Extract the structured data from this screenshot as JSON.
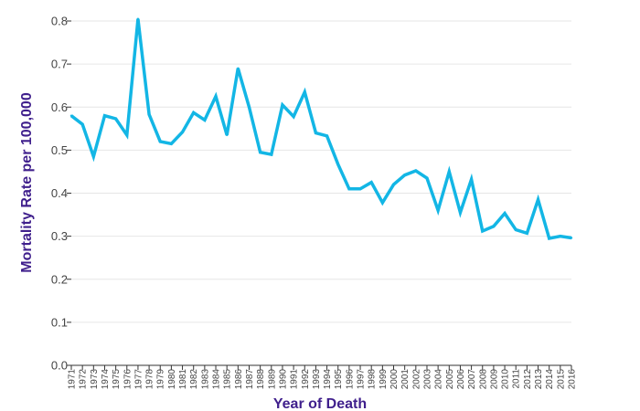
{
  "chart_data": {
    "type": "line",
    "title": "",
    "xlabel": "Year of Death",
    "ylabel": "Mortality Rate per 100,000",
    "ylim": [
      0,
      0.8
    ],
    "yticks": [
      "0.0",
      "0.1",
      "0.2",
      "0.3",
      "0.4",
      "0.5",
      "0.6",
      "0.7",
      "0.8"
    ],
    "grid": true,
    "legend": "none",
    "x": [
      1971,
      1972,
      1973,
      1974,
      1975,
      1976,
      1977,
      1978,
      1979,
      1980,
      1981,
      1982,
      1983,
      1984,
      1985,
      1986,
      1987,
      1988,
      1989,
      1990,
      1991,
      1992,
      1993,
      1994,
      1995,
      1996,
      1997,
      1998,
      1999,
      2000,
      2001,
      2002,
      2003,
      2004,
      2005,
      2006,
      2007,
      2008,
      2009,
      2010,
      2011,
      2012,
      2013,
      2014,
      2015,
      2016
    ],
    "series": [
      {
        "values": [
          0.58,
          0.56,
          0.485,
          0.58,
          0.573,
          0.535,
          0.805,
          0.583,
          0.52,
          0.515,
          0.542,
          0.587,
          0.57,
          0.625,
          0.535,
          0.69,
          0.6,
          0.495,
          0.49,
          0.605,
          0.578,
          0.635,
          0.54,
          0.533,
          0.467,
          0.41,
          0.41,
          0.425,
          0.378,
          0.42,
          0.442,
          0.452,
          0.435,
          0.36,
          0.45,
          0.355,
          0.432,
          0.312,
          0.323,
          0.353,
          0.315,
          0.307,
          0.385,
          0.295,
          0.3,
          0.296
        ]
      }
    ],
    "colors": {
      "line": "#13b6e5",
      "axis_title": "#3f1f8c"
    }
  }
}
